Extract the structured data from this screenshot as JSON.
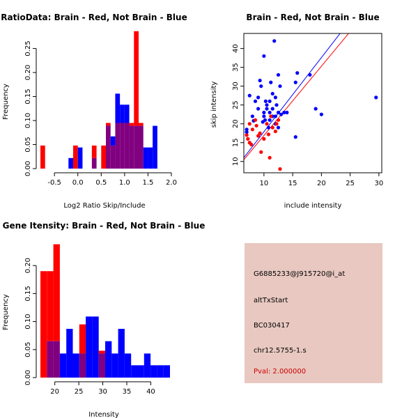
{
  "colors": {
    "brain": "#ff0000",
    "not_brain": "#0000ff",
    "overlap": "#800080",
    "info_bg": "#e8c8c0"
  },
  "chart_data": [
    {
      "id": "ratio",
      "type": "bar",
      "title": "RatioData: Brain - Red, Not Brain - Blue",
      "xlabel": "Log2 Ratio Skip/Include",
      "ylabel": "Frequency",
      "xlim": [
        -0.8,
        2.0
      ],
      "ylim": [
        0,
        0.29
      ],
      "xticks": [
        -0.5,
        0.0,
        0.5,
        1.0,
        1.5,
        2.0
      ],
      "xtick_labels": [
        "-0.5",
        "0.0",
        "0.5",
        "1.0",
        "1.5",
        "2.0"
      ],
      "yticks": [
        0.0,
        0.05,
        0.1,
        0.15,
        0.2,
        0.25
      ],
      "ytick_labels": [
        "0.00",
        "0.05",
        "0.10",
        "0.15",
        "0.20",
        "0.25"
      ],
      "bin_start": -0.8,
      "bin_width": 0.1,
      "series": [
        {
          "name": "Brain",
          "color": "brain",
          "values": [
            0.048,
            0,
            0,
            0,
            0,
            0,
            0,
            0.048,
            0,
            0,
            0,
            0.048,
            0,
            0.048,
            0.095,
            0.048,
            0.095,
            0.095,
            0.095,
            0.095,
            0.286,
            0.095,
            0,
            0,
            0,
            0,
            0,
            0
          ]
        },
        {
          "name": "Not Brain",
          "color": "not_brain",
          "values": [
            0,
            0,
            0,
            0,
            0,
            0,
            0.022,
            0,
            0.044,
            0,
            0,
            0.022,
            0,
            0,
            0.089,
            0.067,
            0.156,
            0.133,
            0.133,
            0.089,
            0.089,
            0.089,
            0.044,
            0.044,
            0.089,
            0,
            0,
            0
          ]
        }
      ]
    },
    {
      "id": "scatter",
      "type": "scatter",
      "title": "Brain - Red, Not Brain - Blue",
      "xlabel": "include intensity",
      "ylabel": "skip intensity",
      "xlim": [
        6.5,
        30.5
      ],
      "ylim": [
        7,
        44
      ],
      "xticks": [
        10,
        15,
        20,
        25,
        30
      ],
      "xtick_labels": [
        "10",
        "15",
        "20",
        "25",
        "30"
      ],
      "yticks": [
        10,
        15,
        20,
        25,
        30,
        35,
        40
      ],
      "ytick_labels": [
        "10",
        "15",
        "20",
        "25",
        "30",
        "35",
        "40"
      ],
      "lines": [
        {
          "color": "not_brain",
          "slope": 1.97,
          "intercept": -1.8
        },
        {
          "color": "brain",
          "slope": 1.84,
          "intercept": -1.5
        }
      ],
      "series": [
        {
          "name": "Not Brain",
          "color": "not_brain",
          "points": [
            [
              7,
              18.5
            ],
            [
              7,
              17.8
            ],
            [
              7.5,
              27.5
            ],
            [
              8,
              22
            ],
            [
              8.5,
              26
            ],
            [
              9,
              24
            ],
            [
              9,
              27
            ],
            [
              9.3,
              31.5
            ],
            [
              9.5,
              30
            ],
            [
              10,
              22
            ],
            [
              10,
              23
            ],
            [
              10,
              38
            ],
            [
              10.3,
              26
            ],
            [
              10.5,
              24
            ],
            [
              10.5,
              25
            ],
            [
              10.8,
              19
            ],
            [
              11,
              21
            ],
            [
              11,
              23
            ],
            [
              11,
              26
            ],
            [
              11.2,
              31
            ],
            [
              11.5,
              22
            ],
            [
              11.5,
              24
            ],
            [
              11.5,
              28
            ],
            [
              11.8,
              42
            ],
            [
              12,
              20
            ],
            [
              12,
              22
            ],
            [
              12,
              27
            ],
            [
              12.2,
              25
            ],
            [
              12.5,
              19
            ],
            [
              12.5,
              23
            ],
            [
              12.8,
              30
            ],
            [
              13,
              22.5
            ],
            [
              13.5,
              23
            ],
            [
              14,
              23
            ],
            [
              15.5,
              16.5
            ],
            [
              15.5,
              31
            ],
            [
              15.8,
              33.5
            ],
            [
              18,
              33
            ],
            [
              19,
              24
            ],
            [
              20,
              22.5
            ],
            [
              29.5,
              27
            ],
            [
              12.5,
              33
            ],
            [
              10.2,
              21
            ],
            [
              9.8,
              20.5
            ],
            [
              8.2,
              20.8
            ]
          ]
        },
        {
          "name": "Brain",
          "color": "brain",
          "points": [
            [
              7,
              17
            ],
            [
              7.2,
              16
            ],
            [
              7.5,
              20
            ],
            [
              7.5,
              15
            ],
            [
              8,
              18.5
            ],
            [
              8.5,
              21
            ],
            [
              9.3,
              17.5
            ],
            [
              9.5,
              12.5
            ],
            [
              10,
              16
            ],
            [
              10.5,
              20
            ],
            [
              11,
              11
            ],
            [
              11.5,
              19
            ],
            [
              12,
              18
            ],
            [
              12.5,
              21
            ],
            [
              12.8,
              8
            ],
            [
              12.2,
              20
            ],
            [
              11.2,
              22
            ],
            [
              8.7,
              19.5
            ],
            [
              7.8,
              14.5
            ],
            [
              10.8,
              17.2
            ],
            [
              9,
              16.8
            ]
          ]
        }
      ]
    },
    {
      "id": "intensity",
      "type": "bar",
      "title": "Gene Itensity: Brain - Red, Not Brain - Blue",
      "xlabel": "Intensity",
      "ylabel": "Frequency",
      "xlim": [
        17,
        44
      ],
      "ylim": [
        0,
        0.245
      ],
      "xticks": [
        20,
        25,
        30,
        35,
        40
      ],
      "xtick_labels": [
        "20",
        "25",
        "30",
        "35",
        "40"
      ],
      "yticks": [
        0.0,
        0.05,
        0.1,
        0.15,
        0.2
      ],
      "ytick_labels": [
        "0.00",
        "0.05",
        "0.10",
        "0.15",
        "0.20"
      ],
      "bin_start": 17,
      "bin_width": 1.35,
      "series": [
        {
          "name": "Brain",
          "color": "brain",
          "values": [
            0.19,
            0.19,
            0.238,
            0,
            0,
            0,
            0.095,
            0,
            0,
            0.048,
            0,
            0,
            0,
            0,
            0,
            0,
            0,
            0,
            0,
            0
          ]
        },
        {
          "name": "Not Brain",
          "color": "not_brain",
          "values": [
            0,
            0.065,
            0.065,
            0.043,
            0.087,
            0.043,
            0.043,
            0.109,
            0.109,
            0.043,
            0.065,
            0.043,
            0.087,
            0.043,
            0.022,
            0.022,
            0.043,
            0.022,
            0.022,
            0.022
          ]
        }
      ]
    }
  ],
  "info": {
    "probe": "G6885233@J915720@i_at",
    "event": "altTxStart",
    "accession": "BC030417",
    "location": "chr12.5755-1.s",
    "pval": "Pval: 2.000000"
  }
}
